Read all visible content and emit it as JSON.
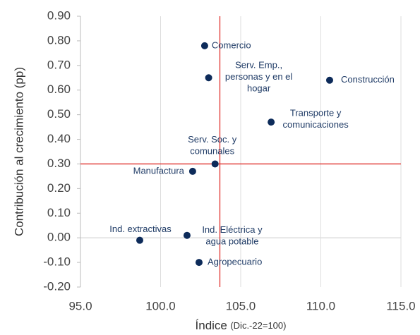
{
  "chart_data": {
    "type": "scatter",
    "x_label": "Índice",
    "x_label_note": "(Dic.-22=100)",
    "y_label": "Contribución al crecimiento (pp)",
    "color": "#0d2b5a",
    "ref_color": "#e0302c",
    "points": [
      {
        "label_lines": [
          "Comercio"
        ],
        "x": 102.75,
        "y": 0.78
      },
      {
        "label_lines": [
          "Serv. Emp.,",
          "personas y en el",
          "hogar"
        ],
        "x": 103.0,
        "y": 0.65
      },
      {
        "label_lines": [
          "Construcción"
        ],
        "x": 110.55,
        "y": 0.64
      },
      {
        "label_lines": [
          "Transporte y",
          "comunicaciones"
        ],
        "x": 106.9,
        "y": 0.47
      },
      {
        "label_lines": [
          "Serv. Soc. y",
          "comunales"
        ],
        "x": 103.4,
        "y": 0.3
      },
      {
        "label_lines": [
          "Manufactura"
        ],
        "x": 102.0,
        "y": 0.27
      },
      {
        "label_lines": [
          "Ind. extractivas"
        ],
        "x": 98.7,
        "y": -0.01
      },
      {
        "label_lines": [
          "Ind. Eléctrica y",
          "agua potable"
        ],
        "x": 101.65,
        "y": 0.01
      },
      {
        "label_lines": [
          "Agropecuario"
        ],
        "x": 102.4,
        "y": -0.1
      }
    ],
    "ref_x": 103.7,
    "ref_y": 0.3,
    "xlim": [
      95,
      115
    ],
    "xticks": [
      {
        "value": 95,
        "label": "95.0"
      },
      {
        "value": 100,
        "label": "100.0"
      },
      {
        "value": 105,
        "label": "105.0"
      },
      {
        "value": 110,
        "label": "110.0"
      },
      {
        "value": 115,
        "label": "115.0"
      }
    ],
    "ylim": [
      -0.2,
      0.9
    ],
    "yticks": [
      {
        "value": -0.2,
        "label": "-0.20"
      },
      {
        "value": -0.1,
        "label": "-0.10"
      },
      {
        "value": 0,
        "label": "0.00"
      },
      {
        "value": 0.1,
        "label": "0.10"
      },
      {
        "value": 0.2,
        "label": "0.20"
      },
      {
        "value": 0.3,
        "label": "0.30"
      },
      {
        "value": 0.4,
        "label": "0.40"
      },
      {
        "value": 0.5,
        "label": "0.50"
      },
      {
        "value": 0.6,
        "label": "0.60"
      },
      {
        "value": 0.7,
        "label": "0.70"
      },
      {
        "value": 0.8,
        "label": "0.80"
      },
      {
        "value": 0.9,
        "label": "0.90"
      }
    ],
    "grid": true
  }
}
